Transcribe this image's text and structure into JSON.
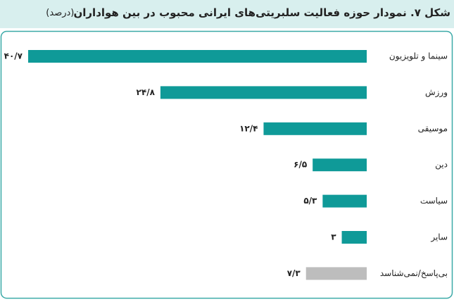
{
  "chart_data": {
    "type": "bar",
    "orientation": "horizontal",
    "title": "شکل ۷. نمودار حوزه فعالیت سلبریتی‌های ایرانی محبوب در بین هواداران",
    "subtitle": "(درصد)",
    "categories": [
      "سینما و تلویزیون",
      "ورزش",
      "موسیقی",
      "دین",
      "سیاست",
      "سایر",
      "بی‌پاسخ/نمی‌شناسد"
    ],
    "values": [
      40.7,
      24.8,
      12.4,
      6.5,
      5.3,
      3,
      7.3
    ],
    "value_labels": [
      "۴۰/۷",
      "۲۴/۸",
      "۱۲/۴",
      "۶/۵",
      "۵/۳",
      "۳",
      "۷/۳"
    ],
    "colors": [
      "#0f9a98",
      "#0f9a98",
      "#0f9a98",
      "#0f9a98",
      "#0f9a98",
      "#0f9a98",
      "#bdbdbd"
    ]
  }
}
